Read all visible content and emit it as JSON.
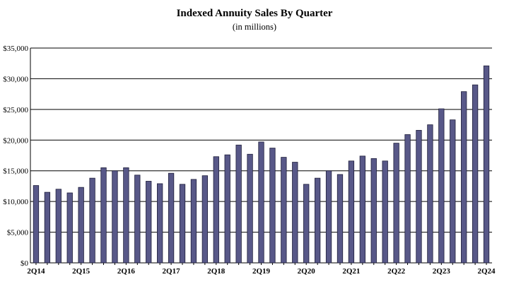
{
  "chart_data": {
    "type": "bar",
    "title": "Indexed Annuity Sales By Quarter",
    "subtitle": "(in millions)",
    "xlabel": "",
    "ylabel": "",
    "ylim": [
      0,
      35000
    ],
    "y_ticks": [
      0,
      5000,
      10000,
      15000,
      20000,
      25000,
      30000,
      35000
    ],
    "y_tick_labels": [
      "$0",
      "$5,000",
      "$10,000",
      "$15,000",
      "$20,000",
      "$25,000",
      "$30,000",
      "$35,000"
    ],
    "grid": true,
    "legend": "none",
    "bar_color": "#585888",
    "categories": [
      "2Q14",
      "3Q14",
      "4Q14",
      "1Q15",
      "2Q15",
      "3Q15",
      "4Q15",
      "1Q16",
      "2Q16",
      "3Q16",
      "4Q16",
      "1Q17",
      "2Q17",
      "3Q17",
      "4Q17",
      "1Q18",
      "2Q18",
      "3Q18",
      "4Q18",
      "1Q19",
      "2Q19",
      "3Q19",
      "4Q19",
      "1Q20",
      "2Q20",
      "3Q20",
      "4Q20",
      "1Q21",
      "2Q21",
      "3Q21",
      "4Q21",
      "1Q22",
      "2Q22",
      "3Q22",
      "4Q22",
      "1Q23",
      "2Q23",
      "3Q23",
      "4Q23",
      "1Q24",
      "2Q24"
    ],
    "x_tick_labels": [
      "2Q14",
      "",
      "",
      "",
      "2Q15",
      "",
      "",
      "",
      "2Q16",
      "",
      "",
      "",
      "2Q17",
      "",
      "",
      "",
      "2Q18",
      "",
      "",
      "",
      "2Q19",
      "",
      "",
      "",
      "2Q20",
      "",
      "",
      "",
      "2Q21",
      "",
      "",
      "",
      "2Q22",
      "",
      "",
      "",
      "2Q23",
      "",
      "",
      "",
      "2Q24"
    ],
    "values": [
      12600,
      11500,
      12000,
      11400,
      12300,
      13800,
      15500,
      15000,
      15500,
      14300,
      13300,
      12900,
      14600,
      12800,
      13600,
      14200,
      17300,
      17600,
      19200,
      17700,
      19700,
      18700,
      17200,
      16400,
      12800,
      13800,
      15000,
      14400,
      16600,
      17400,
      17000,
      16600,
      19500,
      20900,
      21600,
      22500,
      25100,
      23300,
      27900,
      29000,
      32100
    ]
  }
}
